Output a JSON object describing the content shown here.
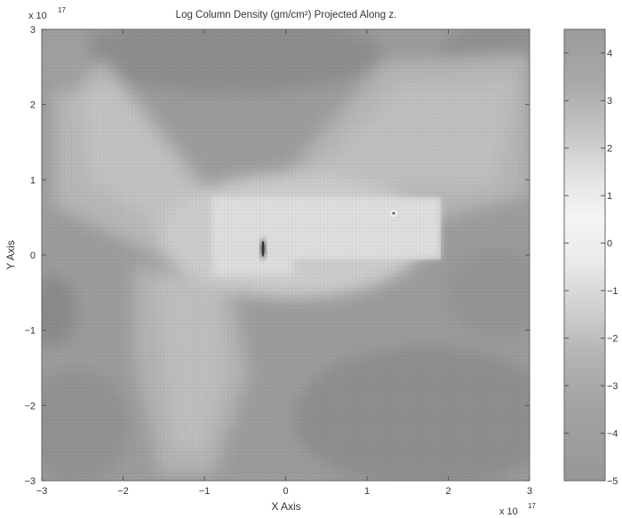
{
  "chart_data": {
    "type": "heatmap",
    "title": "Log Column Density (gm/cm²) Projected Along z.",
    "xlabel": "X Axis",
    "ylabel": "Y Axis",
    "x_exponent": "x 10",
    "x_exponent_power": "17",
    "y_exponent": "x 10",
    "y_exponent_power": "17",
    "xlim": [
      -3,
      3
    ],
    "ylim": [
      -3,
      3
    ],
    "x_ticks": [
      -3,
      -2,
      -1,
      0,
      1,
      2,
      3
    ],
    "y_ticks": [
      -3,
      -2,
      -1,
      0,
      1,
      2,
      3
    ],
    "colorbar": {
      "range": [
        -5,
        4.5
      ],
      "ticks": [
        4,
        3,
        2,
        1,
        0,
        -1,
        -2,
        -3,
        -4,
        -5
      ],
      "colormap": "grayscale"
    },
    "grid": false,
    "legend": "none"
  }
}
